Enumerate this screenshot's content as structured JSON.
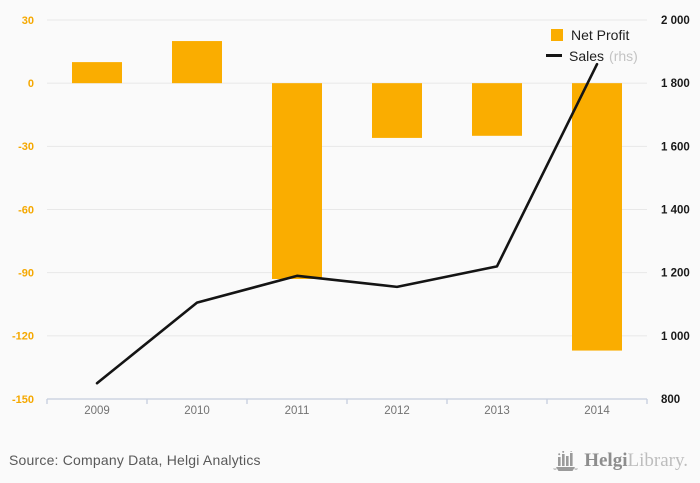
{
  "chart_data": {
    "type": "bar",
    "combo": "bar+line",
    "title": "",
    "categories": [
      "2009",
      "2010",
      "2011",
      "2012",
      "2013",
      "2014"
    ],
    "series": [
      {
        "name": "Net Profit",
        "type": "bar",
        "axis": "left",
        "color": "#FAAD00",
        "values": [
          10,
          20,
          -93,
          -26,
          -25,
          -127
        ]
      },
      {
        "name": "Sales",
        "type": "line",
        "axis": "right",
        "color": "#141414",
        "values": [
          850,
          1105,
          1190,
          1155,
          1220,
          1860
        ]
      }
    ],
    "left_axis": {
      "ticks": [
        30,
        0,
        -30,
        -60,
        -90,
        -120,
        -150
      ],
      "labels": [
        "30",
        "0",
        "-30",
        "-60",
        "-90",
        "-120",
        "-150"
      ],
      "range": [
        -150,
        30
      ],
      "label_color": "#F5A800"
    },
    "right_axis": {
      "ticks": [
        2000,
        1800,
        1600,
        1400,
        1200,
        1000,
        800
      ],
      "labels": [
        "2 000",
        "1 800",
        "1 600",
        "1 400",
        "1 200",
        "1 000",
        "800"
      ],
      "range": [
        800,
        2000
      ],
      "label_color": "#1a1a1a"
    },
    "grid": true,
    "gridline_color": "#e8e8e8",
    "baseline_color": "#c5cede",
    "x_label_color": "#737373",
    "legend_position": "top-right"
  },
  "legend": {
    "items": [
      {
        "label": "Net Profit",
        "suffix": "",
        "marker": "square",
        "color": "#FAAD00"
      },
      {
        "label": "Sales",
        "suffix": "(rhs)",
        "marker": "line",
        "color": "#141414"
      }
    ]
  },
  "footer": {
    "source": "Source: Company Data, Helgi Analytics",
    "logo_bold": "Helgi",
    "logo_light": "Library."
  }
}
